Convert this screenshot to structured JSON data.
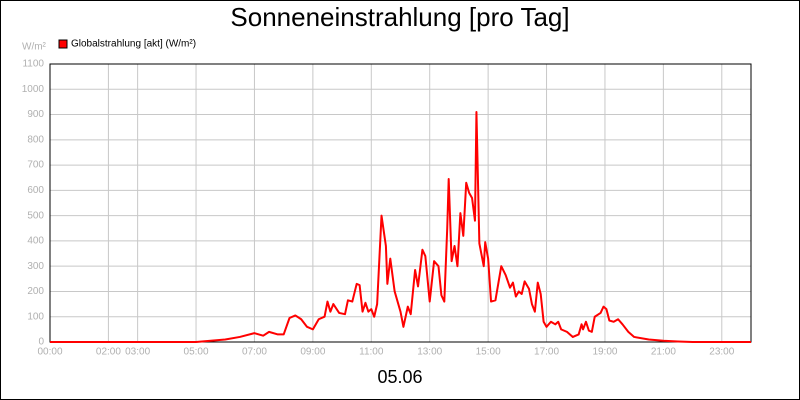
{
  "chart_data": {
    "type": "line",
    "title": "Sonneneinstrahlung [pro Tag]",
    "y_unit": "W/m²",
    "x_label": "05.06",
    "xlim": [
      0,
      24
    ],
    "xticks": [
      {
        "value": 0,
        "label": "00:00"
      },
      {
        "value": 2,
        "label": "02:00"
      },
      {
        "value": 3,
        "label": "03:00"
      },
      {
        "value": 5,
        "label": "05:00"
      },
      {
        "value": 7,
        "label": "07:00"
      },
      {
        "value": 9,
        "label": "09:00"
      },
      {
        "value": 11,
        "label": "11:00"
      },
      {
        "value": 13,
        "label": "13:00"
      },
      {
        "value": 15,
        "label": "15:00"
      },
      {
        "value": 17,
        "label": "17:00"
      },
      {
        "value": 19,
        "label": "19:00"
      },
      {
        "value": 21,
        "label": "21:00"
      },
      {
        "value": 23,
        "label": "23:00"
      }
    ],
    "ylim": [
      0,
      1100
    ],
    "yticks": [
      0,
      100,
      200,
      300,
      400,
      500,
      600,
      700,
      800,
      900,
      1000,
      1100
    ],
    "grid": true,
    "x": [
      0,
      5,
      5.5,
      6,
      6.5,
      7,
      7.3,
      7.5,
      7.8,
      8,
      8.2,
      8.4,
      8.6,
      8.8,
      9,
      9.2,
      9.4,
      9.5,
      9.6,
      9.7,
      9.9,
      10.1,
      10.2,
      10.35,
      10.5,
      10.6,
      10.7,
      10.8,
      10.9,
      11,
      11.1,
      11.2,
      11.35,
      11.5,
      11.55,
      11.65,
      11.8,
      12,
      12.1,
      12.25,
      12.35,
      12.5,
      12.6,
      12.75,
      12.85,
      13,
      13.15,
      13.3,
      13.4,
      13.5,
      13.6,
      13.65,
      13.75,
      13.85,
      13.95,
      14.05,
      14.15,
      14.25,
      14.35,
      14.45,
      14.55,
      14.6,
      14.7,
      14.85,
      14.9,
      15,
      15.1,
      15.25,
      15.45,
      15.6,
      15.75,
      15.85,
      15.95,
      16.05,
      16.15,
      16.25,
      16.4,
      16.5,
      16.6,
      16.7,
      16.8,
      16.9,
      17,
      17.15,
      17.3,
      17.4,
      17.5,
      17.7,
      17.9,
      18.1,
      18.2,
      18.25,
      18.35,
      18.45,
      18.55,
      18.65,
      18.85,
      18.95,
      19.05,
      19.15,
      19.3,
      19.45,
      19.6,
      19.8,
      20,
      20.5,
      21,
      21.5,
      22,
      24
    ],
    "series": [
      {
        "name": "Globalstrahlung [akt] (W/m²)",
        "color": "#ff0000",
        "values": [
          0,
          0,
          5,
          10,
          20,
          35,
          25,
          40,
          30,
          30,
          95,
          105,
          90,
          60,
          50,
          90,
          100,
          160,
          120,
          150,
          115,
          110,
          165,
          160,
          230,
          225,
          120,
          155,
          120,
          130,
          100,
          150,
          500,
          380,
          230,
          330,
          200,
          120,
          60,
          140,
          110,
          285,
          220,
          365,
          340,
          160,
          320,
          300,
          185,
          160,
          450,
          645,
          320,
          380,
          300,
          510,
          420,
          630,
          590,
          570,
          480,
          910,
          390,
          300,
          395,
          330,
          160,
          165,
          300,
          265,
          215,
          235,
          180,
          200,
          190,
          240,
          210,
          150,
          120,
          235,
          190,
          80,
          60,
          80,
          70,
          80,
          50,
          40,
          20,
          30,
          70,
          50,
          80,
          45,
          40,
          100,
          115,
          140,
          130,
          85,
          80,
          90,
          70,
          40,
          20,
          10,
          5,
          2,
          0,
          0
        ]
      }
    ]
  }
}
